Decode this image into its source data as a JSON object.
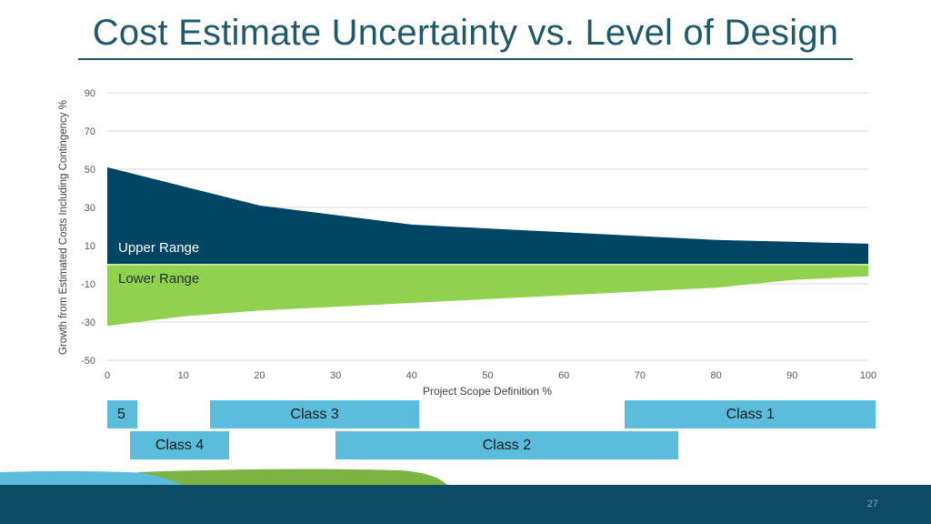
{
  "title": "Cost Estimate Uncertainty vs. Level of Design",
  "page_number": "27",
  "colors": {
    "upper": "#004563",
    "lower": "#92d050",
    "classes": "#5bbcdc",
    "title": "#1f5a6b"
  },
  "chart_data": {
    "type": "area",
    "xlabel": "Project Scope Definition %",
    "ylabel": "Growth from Estimated Costs Including Contingency %",
    "xlim": [
      0,
      100
    ],
    "ylim": [
      -50,
      90
    ],
    "x_ticks": [
      0,
      10,
      20,
      30,
      40,
      50,
      60,
      70,
      80,
      90,
      100
    ],
    "y_ticks": [
      90,
      70,
      50,
      30,
      10,
      -10,
      -30,
      -50
    ],
    "grid": true,
    "series": [
      {
        "name": "Upper Range",
        "x": [
          0,
          10,
          20,
          30,
          40,
          50,
          60,
          70,
          80,
          90,
          100
        ],
        "values": [
          51,
          41,
          31,
          26,
          21,
          19,
          17,
          15,
          13,
          12,
          11
        ]
      },
      {
        "name": "Lower Range",
        "x": [
          0,
          10,
          20,
          30,
          40,
          50,
          60,
          70,
          80,
          90,
          100
        ],
        "values": [
          -32,
          -27,
          -24,
          -22,
          -20,
          -18,
          -16,
          -14,
          -12,
          -8,
          -6
        ]
      }
    ]
  },
  "classes": [
    {
      "label": "5",
      "start": 0,
      "end": 4
    },
    {
      "label": "Class 3",
      "start": 13.5,
      "end": 41
    },
    {
      "label": "Class 1",
      "start": 68,
      "end": 101
    },
    {
      "label": "Class 4",
      "start": 3,
      "end": 16
    },
    {
      "label": "Class 2",
      "start": 30,
      "end": 75
    }
  ]
}
